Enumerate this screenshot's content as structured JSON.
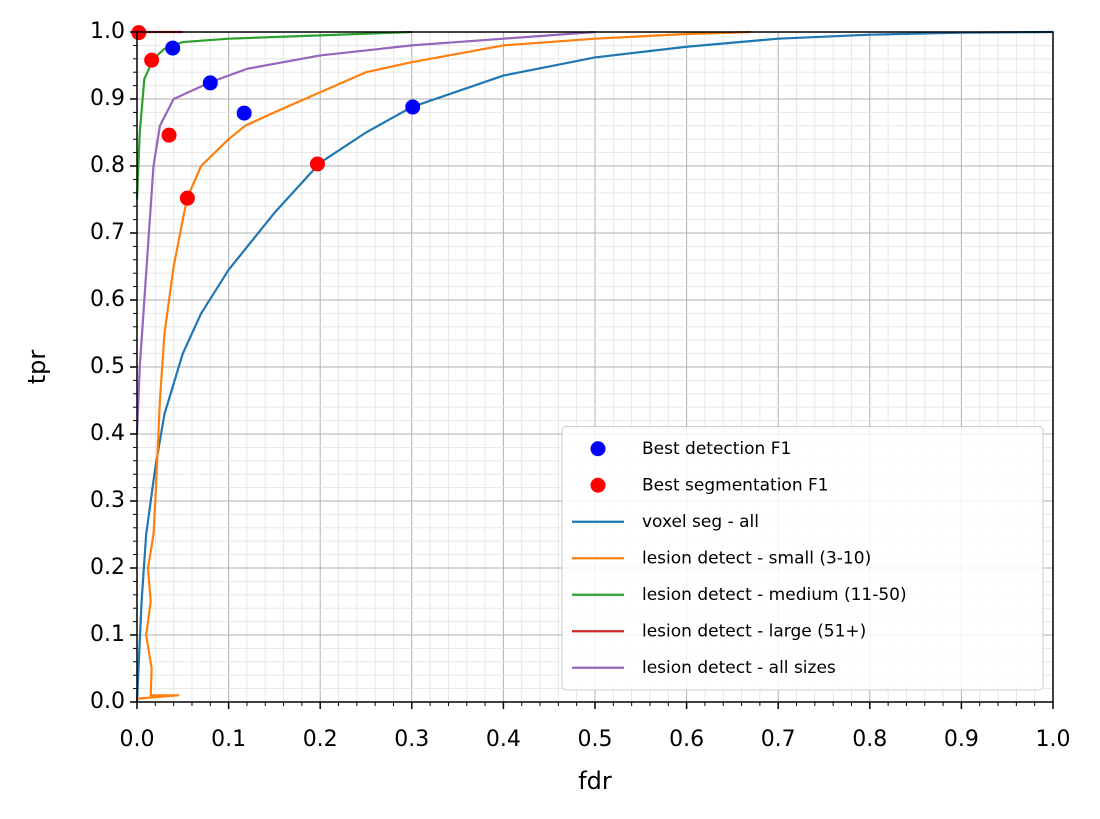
{
  "chart_data": {
    "type": "line",
    "xlabel": "fdr",
    "ylabel": "tpr",
    "xlim": [
      0,
      1
    ],
    "ylim": [
      0,
      1
    ],
    "xticks": [
      {
        "value": 0,
        "label": "0.0"
      },
      0.1,
      0.2,
      0.3,
      0.4,
      0.5,
      0.6,
      0.7,
      0.8,
      0.9,
      {
        "value": 1,
        "label": "1.0"
      }
    ],
    "yticks": [
      {
        "value": 0,
        "label": "0.0"
      },
      0.1,
      0.2,
      0.3,
      0.4,
      0.5,
      0.6,
      0.7,
      0.8,
      0.9,
      {
        "value": 1,
        "label": "1.0"
      }
    ],
    "grid": true,
    "minor_grid": true,
    "legend": "lower right",
    "series": [
      {
        "name": "Best detection F1",
        "color": "#0000ff",
        "style": "marker",
        "x": [
          0.039,
          0.08,
          0.117,
          0.301
        ],
        "values": [
          0.976,
          0.924,
          0.879,
          0.888
        ]
      },
      {
        "name": "Best segmentation F1",
        "color": "#ff0000",
        "style": "marker",
        "x": [
          0.002,
          0.016,
          0.035,
          0.055,
          0.197
        ],
        "values": [
          0.999,
          0.958,
          0.846,
          0.752,
          0.803
        ]
      },
      {
        "name": "voxel seg - all",
        "color": "#1f77b4",
        "style": "line",
        "x": [
          0,
          0.005,
          0.01,
          0.02,
          0.03,
          0.05,
          0.07,
          0.1,
          0.15,
          0.2,
          0.25,
          0.3,
          0.4,
          0.5,
          0.6,
          0.7,
          0.8,
          0.9,
          1.0
        ],
        "values": [
          0,
          0.15,
          0.25,
          0.35,
          0.43,
          0.52,
          0.58,
          0.645,
          0.73,
          0.805,
          0.85,
          0.888,
          0.935,
          0.962,
          0.978,
          0.99,
          0.996,
          0.999,
          1.0
        ]
      },
      {
        "name": "lesion detect - small (3-10)",
        "color": "#ff7f0e",
        "style": "line",
        "x": [
          0,
          0.045,
          0.015,
          0.016,
          0.01,
          0.015,
          0.012,
          0.018,
          0.02,
          0.025,
          0.03,
          0.04,
          0.05,
          0.055,
          0.07,
          0.1,
          0.118,
          0.15,
          0.2,
          0.25,
          0.3,
          0.4,
          0.5,
          0.6,
          0.67
        ],
        "values": [
          0.005,
          0.01,
          0.01,
          0.05,
          0.1,
          0.15,
          0.2,
          0.25,
          0.3,
          0.45,
          0.55,
          0.65,
          0.72,
          0.753,
          0.8,
          0.84,
          0.86,
          0.88,
          0.91,
          0.94,
          0.955,
          0.98,
          0.99,
          0.997,
          1.0
        ]
      },
      {
        "name": "lesion detect - medium (11-50)",
        "color": "#2ca02c",
        "style": "line",
        "x": [
          0,
          0.003,
          0.008,
          0.018,
          0.03,
          0.05,
          0.1,
          0.2,
          0.3
        ],
        "values": [
          0.75,
          0.85,
          0.93,
          0.96,
          0.975,
          0.985,
          0.99,
          0.995,
          1.0
        ]
      },
      {
        "name": "lesion detect - large (51+)",
        "color": "#d62728",
        "style": "line",
        "x": [
          0,
          0.003,
          0.05
        ],
        "values": [
          0.99,
          1.0,
          1.0
        ]
      },
      {
        "name": "lesion detect - all sizes",
        "color": "#9467bd",
        "style": "line",
        "x": [
          0,
          0.003,
          0.008,
          0.013,
          0.018,
          0.025,
          0.04,
          0.08,
          0.12,
          0.2,
          0.3,
          0.4,
          0.5
        ],
        "values": [
          0.4,
          0.5,
          0.6,
          0.7,
          0.8,
          0.86,
          0.9,
          0.925,
          0.945,
          0.965,
          0.98,
          0.99,
          1.0
        ]
      }
    ]
  }
}
